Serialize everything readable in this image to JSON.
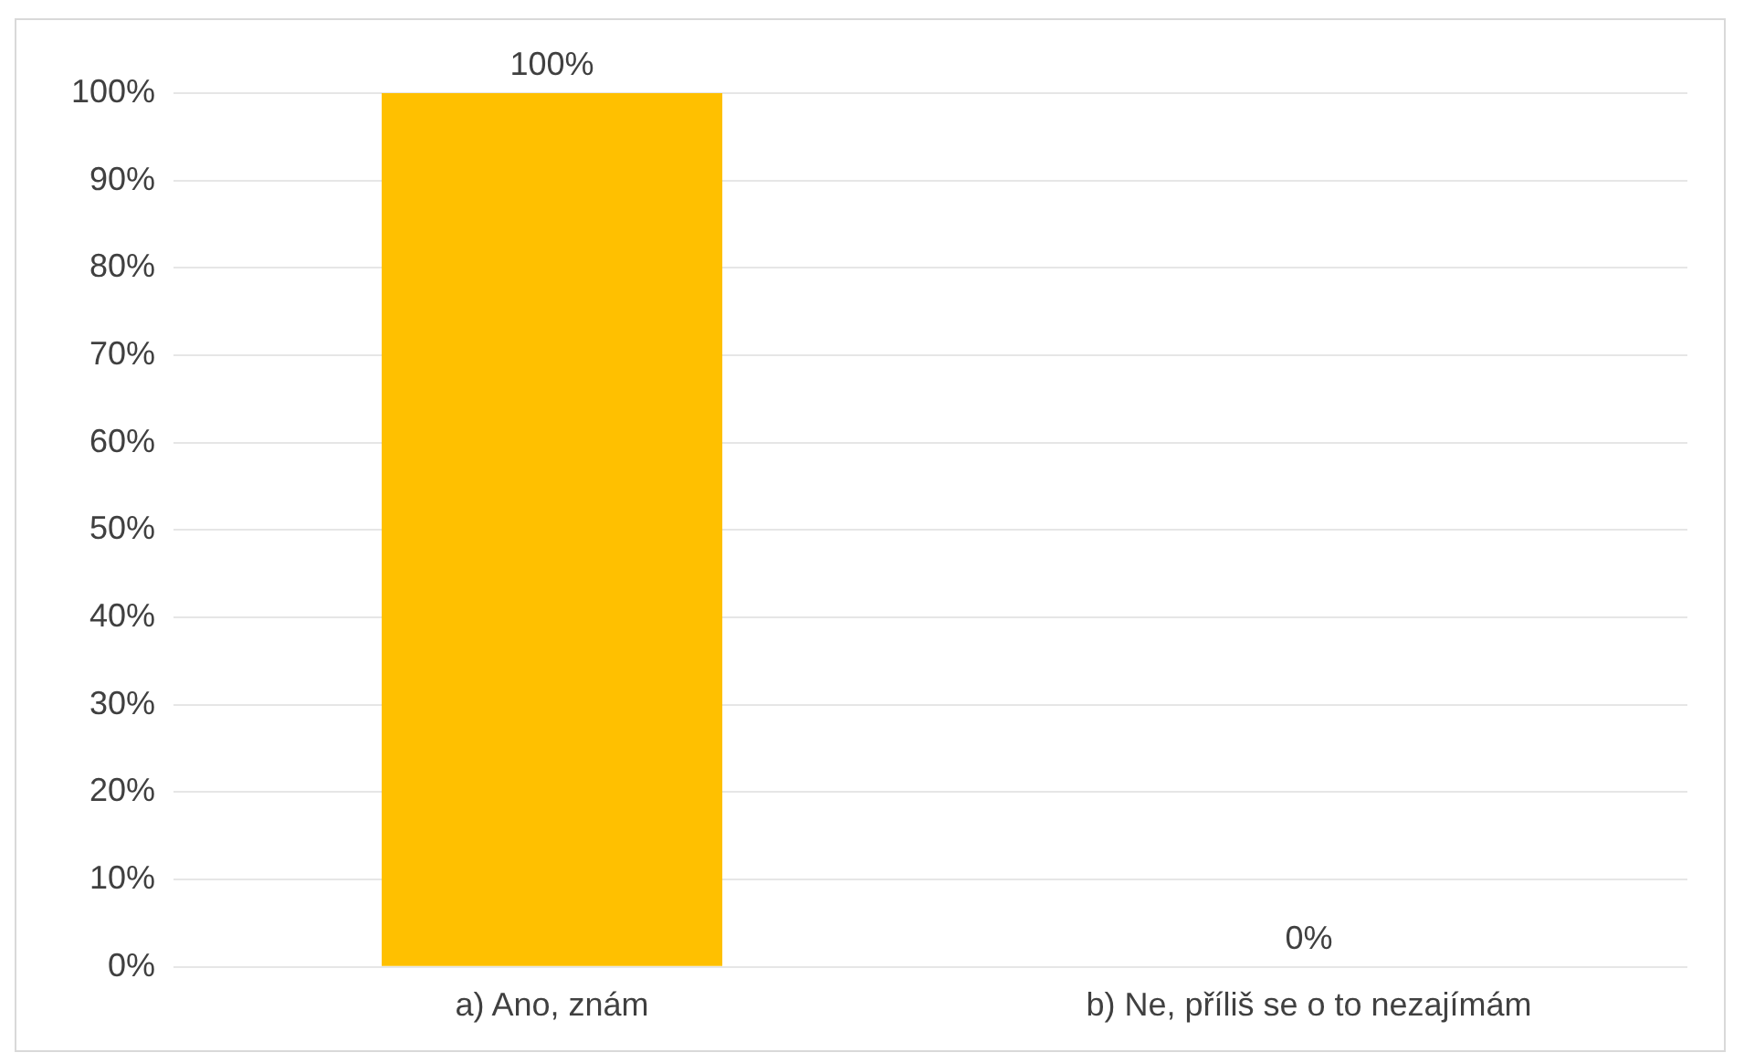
{
  "chart_data": {
    "type": "bar",
    "categories": [
      "a) Ano, znám",
      "b) Ne, příliš se o to nezajímám"
    ],
    "values": [
      100,
      0
    ],
    "color": "#ffc000",
    "value_labels": [
      "100%",
      "0%"
    ],
    "ylim": [
      0,
      100
    ],
    "yticks": [
      {
        "value": 0,
        "label": "0%"
      },
      {
        "value": 10,
        "label": "10%"
      },
      {
        "value": 20,
        "label": "20%"
      },
      {
        "value": 30,
        "label": "30%"
      },
      {
        "value": 40,
        "label": "40%"
      },
      {
        "value": 50,
        "label": "50%"
      },
      {
        "value": 60,
        "label": "60%"
      },
      {
        "value": 70,
        "label": "70%"
      },
      {
        "value": 80,
        "label": "80%"
      },
      {
        "value": 90,
        "label": "90%"
      },
      {
        "value": 100,
        "label": "100%"
      }
    ],
    "grid": "y",
    "legend": false
  }
}
